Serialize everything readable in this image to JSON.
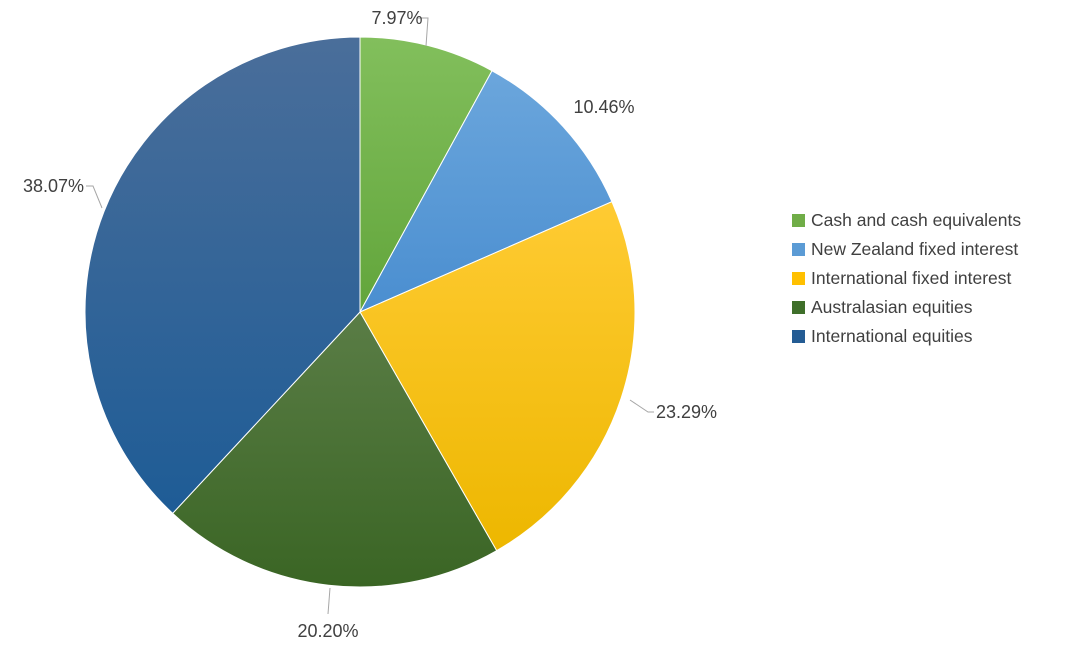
{
  "chart_data": {
    "type": "pie",
    "title": "",
    "start_angle_deg": 0,
    "direction": "clockwise",
    "legend_position": "right",
    "categories": [
      "Cash and cash equivalents",
      "New Zealand fixed interest",
      "International fixed interest",
      "Australasian equities",
      "International equities"
    ],
    "values": [
      7.97,
      10.46,
      23.29,
      20.2,
      38.07
    ],
    "labels": [
      "7.97%",
      "10.46%",
      "23.29%",
      "20.20%",
      "38.07%"
    ],
    "colors": [
      "#70AD47",
      "#5B9BD5",
      "#FFC000",
      "#3F6F2A",
      "#245C94"
    ],
    "colors_light": [
      "#82BF5C",
      "#6BA6DC",
      "#FFCB33",
      "#5A7D46",
      "#4A6E9A"
    ],
    "colors_dark": [
      "#62A53B",
      "#4A8ED0",
      "#EDB700",
      "#3A6524",
      "#1E5C96"
    ]
  }
}
